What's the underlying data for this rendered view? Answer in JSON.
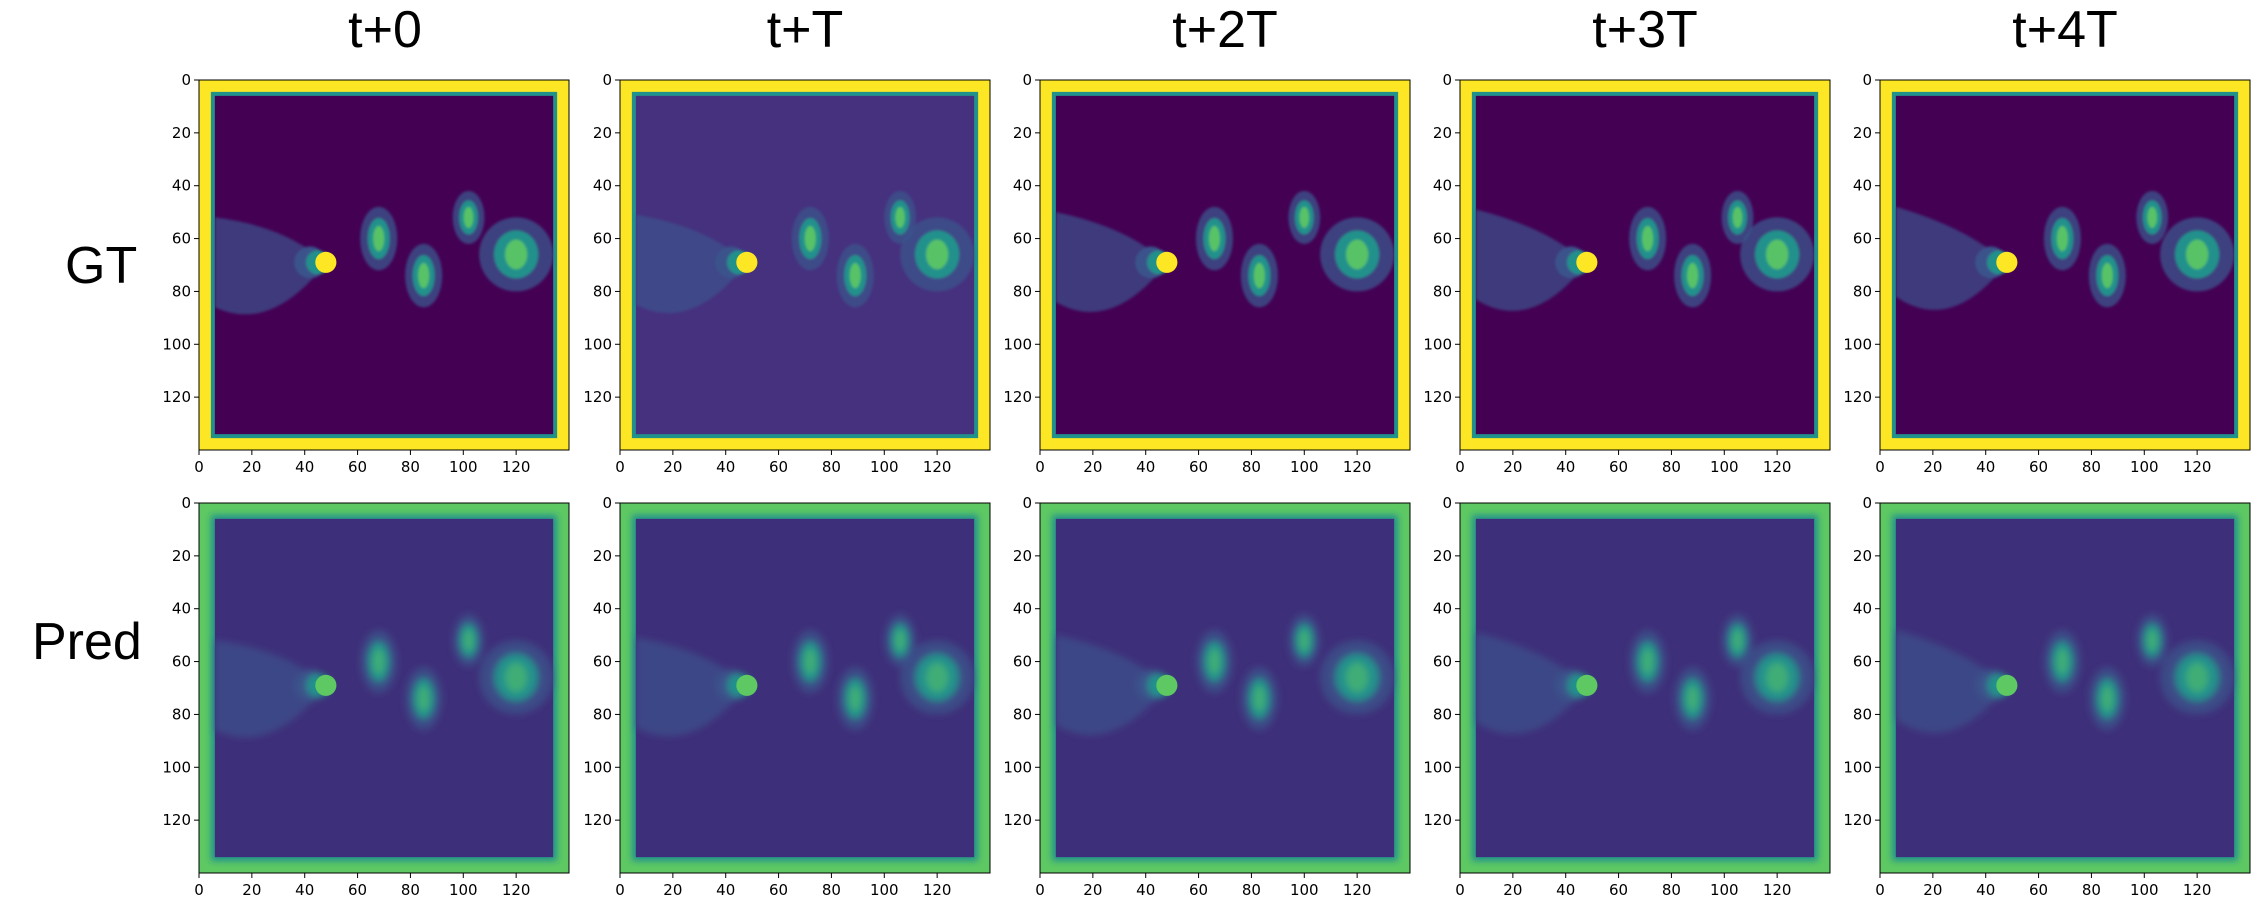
{
  "column_titles": [
    "t+0",
    "t+T",
    "t+2T",
    "t+3T",
    "t+4T"
  ],
  "row_labels": [
    "GT",
    "Pred"
  ],
  "axis_ticks": {
    "x": [
      "0",
      "20",
      "40",
      "60",
      "80",
      "100",
      "120"
    ],
    "y": [
      "0",
      "20",
      "40",
      "60",
      "80",
      "100",
      "120"
    ]
  },
  "colormap": {
    "name": "viridis",
    "low": "#440154",
    "mid_low": "#3b528b",
    "mid": "#21918c",
    "mid_high": "#5ec962",
    "high": "#fde725"
  }
}
